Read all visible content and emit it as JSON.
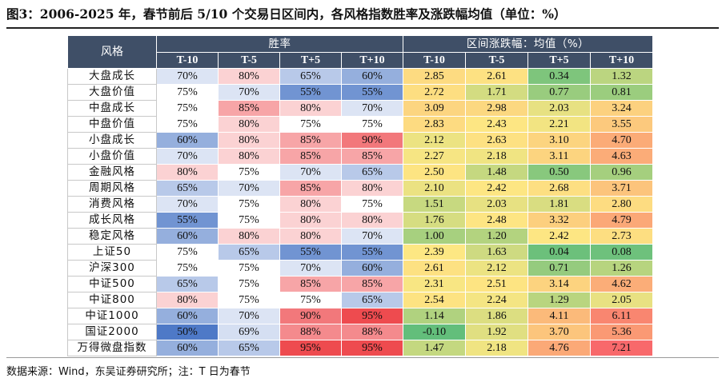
{
  "title": "图3：2006-2025 年，春节前后 5/10 个交易日区间内，各风格指数胜率及涨跌幅均值（单位：%）",
  "table": {
    "corner_label": "风格",
    "group_win": "胜率",
    "group_ret": "区间涨跌幅：均值（%）",
    "subheaders": [
      "T-10",
      "T-5",
      "T+5",
      "T+10",
      "T-10",
      "T-5",
      "T+5",
      "T+10"
    ],
    "rows": [
      {
        "name": "大盘成长",
        "win": [
          "70%",
          "80%",
          "65%",
          "60%"
        ],
        "ret": [
          "2.85",
          "2.61",
          "0.34",
          "1.32"
        ]
      },
      {
        "name": "大盘价值",
        "win": [
          "75%",
          "70%",
          "55%",
          "55%"
        ],
        "ret": [
          "2.72",
          "1.71",
          "0.77",
          "0.81"
        ]
      },
      {
        "name": "中盘成长",
        "win": [
          "75%",
          "85%",
          "80%",
          "70%"
        ],
        "ret": [
          "3.09",
          "2.98",
          "2.03",
          "3.24"
        ]
      },
      {
        "name": "中盘价值",
        "win": [
          "75%",
          "80%",
          "75%",
          "75%"
        ],
        "ret": [
          "2.83",
          "2.43",
          "2.21",
          "3.55"
        ]
      },
      {
        "name": "小盘成长",
        "win": [
          "60%",
          "80%",
          "85%",
          "90%"
        ],
        "ret": [
          "2.12",
          "2.63",
          "3.10",
          "4.70"
        ]
      },
      {
        "name": "小盘价值",
        "win": [
          "70%",
          "80%",
          "85%",
          "85%"
        ],
        "ret": [
          "2.27",
          "2.18",
          "3.11",
          "4.63"
        ]
      },
      {
        "name": "金融风格",
        "win": [
          "80%",
          "75%",
          "70%",
          "65%"
        ],
        "ret": [
          "2.50",
          "1.48",
          "0.50",
          "0.96"
        ]
      },
      {
        "name": "周期风格",
        "win": [
          "65%",
          "70%",
          "85%",
          "80%"
        ],
        "ret": [
          "2.10",
          "2.42",
          "2.68",
          "3.71"
        ]
      },
      {
        "name": "消费风格",
        "win": [
          "70%",
          "75%",
          "80%",
          "75%"
        ],
        "ret": [
          "1.51",
          "2.03",
          "1.81",
          "2.80"
        ]
      },
      {
        "name": "成长风格",
        "win": [
          "55%",
          "75%",
          "80%",
          "80%"
        ],
        "ret": [
          "1.76",
          "2.48",
          "3.32",
          "4.79"
        ]
      },
      {
        "name": "稳定风格",
        "win": [
          "60%",
          "80%",
          "80%",
          "70%"
        ],
        "ret": [
          "1.00",
          "1.20",
          "2.42",
          "2.73"
        ]
      },
      {
        "name": "上证50",
        "win": [
          "75%",
          "65%",
          "55%",
          "55%"
        ],
        "ret": [
          "2.39",
          "1.63",
          "0.04",
          "0.08"
        ]
      },
      {
        "name": "沪深300",
        "win": [
          "75%",
          "75%",
          "70%",
          "60%"
        ],
        "ret": [
          "2.61",
          "2.12",
          "0.71",
          "1.26"
        ]
      },
      {
        "name": "中证500",
        "win": [
          "65%",
          "75%",
          "85%",
          "85%"
        ],
        "ret": [
          "2.31",
          "2.51",
          "3.14",
          "4.62"
        ]
      },
      {
        "name": "中证800",
        "win": [
          "80%",
          "75%",
          "75%",
          "65%"
        ],
        "ret": [
          "2.54",
          "2.24",
          "1.29",
          "2.05"
        ]
      },
      {
        "name": "中证1000",
        "win": [
          "60%",
          "70%",
          "90%",
          "95%"
        ],
        "ret": [
          "1.14",
          "1.86",
          "4.11",
          "6.11"
        ]
      },
      {
        "name": "国证2000",
        "win": [
          "50%",
          "69%",
          "88%",
          "88%"
        ],
        "ret": [
          "-0.10",
          "1.92",
          "3.70",
          "5.36"
        ]
      },
      {
        "name": "万得微盘指数",
        "win": [
          "60%",
          "65%",
          "95%",
          "95%"
        ],
        "ret": [
          "1.47",
          "2.18",
          "4.76",
          "7.21"
        ]
      }
    ]
  },
  "colors": {
    "header_bg": "#3f4f67",
    "win_scale": {
      "low": "#4e79c7",
      "mid": "#ffffff",
      "high": "#ee4b4f"
    },
    "ret_scale": {
      "low": "#63be7b",
      "mid": "#fde783",
      "high": "#f8696b"
    }
  },
  "source": "数据来源：Wind，东吴证券研究所；注：T 日为春节"
}
